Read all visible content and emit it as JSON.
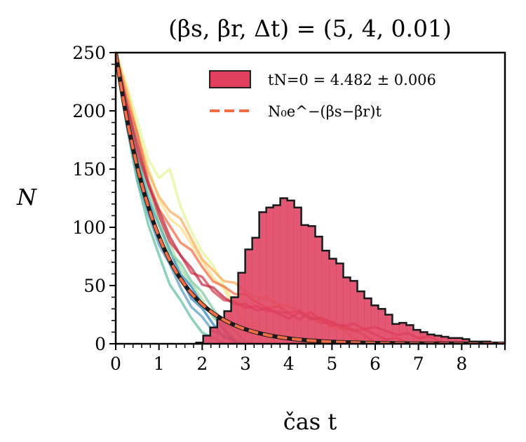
{
  "chart_data": {
    "type": "bar",
    "title": "(βs, βr, Δt) = (5, 4, 0.01)",
    "xlabel": "čas t",
    "ylabel": "N",
    "xlim": [
      0,
      9
    ],
    "ylim": [
      0,
      250
    ],
    "xticks": [
      "0",
      "1",
      "2",
      "3",
      "4",
      "5",
      "6",
      "7",
      "8"
    ],
    "yticks": [
      "0",
      "50",
      "100",
      "150",
      "200",
      "250"
    ],
    "legend_position": "top-right",
    "legend": [
      {
        "label": "t_{N=0} = 4.482 ± 0.006",
        "display": "tN=0 = 4.482 ± 0.006",
        "type": "histogram"
      },
      {
        "label": "N0 e^{-(βs-βr)t}",
        "display": "N₀e^−(βs−βr)t",
        "type": "dashed-line"
      }
    ],
    "histogram": {
      "bin_start": 1.86,
      "bin_width": 0.162,
      "counts": [
        1,
        7,
        14,
        21,
        28,
        40,
        61,
        81,
        91,
        113,
        117,
        119,
        125,
        123,
        117,
        102,
        101,
        92,
        80,
        73,
        69,
        57,
        54,
        45,
        39,
        33,
        30,
        25,
        17,
        18,
        16,
        12,
        10,
        8,
        7,
        6,
        5,
        5,
        4,
        2,
        2,
        2,
        1,
        1
      ],
      "color": "#e0405e"
    },
    "exponential": {
      "N0": 250,
      "rate": 1,
      "color": "#f46d43"
    },
    "trajectories": {
      "dt": 0.25,
      "series": [
        {
          "color": "#3288bd",
          "values": [
            250,
            195,
            150,
            118,
            92,
            72,
            55,
            40,
            28,
            17,
            8,
            2,
            0
          ]
        },
        {
          "color": "#2b83ba",
          "values": [
            250,
            200,
            160,
            125,
            100,
            80,
            62,
            48,
            35,
            22,
            12,
            4,
            0
          ]
        },
        {
          "color": "#5e9fc4",
          "values": [
            250,
            188,
            142,
            110,
            86,
            66,
            48,
            34,
            22,
            12,
            5,
            0
          ]
        },
        {
          "color": "#66c2a5",
          "values": [
            250,
            190,
            140,
            105,
            75,
            52,
            35,
            22,
            12,
            4,
            0
          ]
        },
        {
          "color": "#abdda4",
          "values": [
            250,
            210,
            170,
            140,
            110,
            85,
            65,
            50,
            38,
            25,
            14,
            6,
            0
          ]
        },
        {
          "color": "#7fcba4",
          "values": [
            250,
            205,
            165,
            128,
            102,
            80,
            68,
            55,
            42,
            30,
            20,
            10,
            3,
            0
          ]
        },
        {
          "color": "#e6f598",
          "values": [
            250,
            225,
            190,
            160,
            140,
            150,
            120,
            95,
            80,
            65,
            50,
            38,
            26,
            18,
            10,
            4,
            0
          ]
        },
        {
          "color": "#fee08b",
          "values": [
            250,
            220,
            185,
            150,
            125,
            105,
            100,
            88,
            70,
            58,
            45,
            30,
            20,
            12,
            6,
            0
          ]
        },
        {
          "color": "#fdae61",
          "values": [
            250,
            215,
            180,
            150,
            125,
            115,
            105,
            90,
            75,
            62,
            55,
            50,
            45,
            42,
            38,
            35,
            30,
            28,
            25,
            20,
            15,
            10,
            5,
            0
          ]
        },
        {
          "color": "#f46d43",
          "values": [
            250,
            212,
            178,
            140,
            118,
            100,
            88,
            78,
            66,
            56,
            48,
            44,
            40,
            36,
            33,
            31,
            28,
            26,
            23,
            20,
            18,
            14,
            10,
            7,
            4,
            2,
            0
          ]
        },
        {
          "color": "#d53e4f",
          "values": [
            250,
            205,
            165,
            135,
            110,
            90,
            75,
            62,
            55,
            45,
            40,
            35,
            32,
            30,
            28,
            30,
            25,
            22,
            25,
            20,
            18,
            15,
            12,
            10,
            8,
            6,
            4,
            2,
            0
          ]
        },
        {
          "color": "#c2304a",
          "values": [
            250,
            208,
            170,
            138,
            112,
            92,
            78,
            64,
            52,
            46,
            40,
            36,
            33,
            30,
            28,
            26,
            24,
            26,
            22,
            20,
            18,
            17,
            16,
            14,
            12,
            11,
            10,
            8,
            6,
            4,
            2,
            0
          ]
        }
      ]
    }
  }
}
